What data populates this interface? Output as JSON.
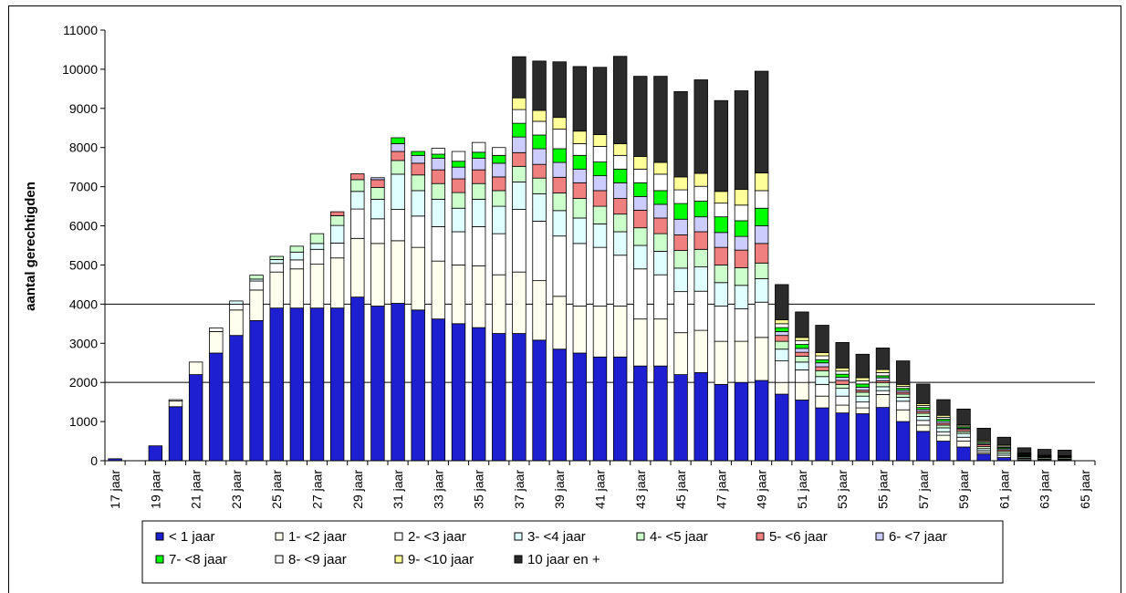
{
  "chart_data": {
    "type": "bar",
    "stacked": true,
    "title": "",
    "xlabel": "",
    "ylabel": "aantal gerechtigden",
    "ylim": [
      0,
      11000
    ],
    "yticks": [
      0,
      1000,
      2000,
      3000,
      4000,
      5000,
      6000,
      7000,
      8000,
      9000,
      10000,
      11000
    ],
    "grid": "horizontal at 2000 and 4000",
    "legend_position": "bottom",
    "categories": [
      "17 jaar",
      "18 jaar",
      "19 jaar",
      "20 jaar",
      "21 jaar",
      "22 jaar",
      "23 jaar",
      "24 jaar",
      "25 jaar",
      "26 jaar",
      "27 jaar",
      "28 jaar",
      "29 jaar",
      "30 jaar",
      "31 jaar",
      "32 jaar",
      "33 jaar",
      "34 jaar",
      "35 jaar",
      "36 jaar",
      "37 jaar",
      "38 jaar",
      "39 jaar",
      "40 jaar",
      "41 jaar",
      "42 jaar",
      "43 jaar",
      "44 jaar",
      "45 jaar",
      "46 jaar",
      "47 jaar",
      "48 jaar",
      "49 jaar",
      "50 jaar",
      "51 jaar",
      "52 jaar",
      "53 jaar",
      "54 jaar",
      "55 jaar",
      "56 jaar",
      "57 jaar",
      "58 jaar",
      "59 jaar",
      "60 jaar",
      "61 jaar",
      "62 jaar",
      "63 jaar",
      "64 jaar",
      "65 jaar"
    ],
    "x_tick_labels": [
      "17 jaar",
      "19 jaar",
      "21 jaar",
      "23 jaar",
      "25 jaar",
      "27 jaar",
      "29 jaar",
      "31 jaar",
      "33 jaar",
      "35 jaar",
      "37 jaar",
      "39 jaar",
      "41 jaar",
      "43 jaar",
      "45 jaar",
      "47 jaar",
      "49 jaar",
      "51 jaar",
      "53 jaar",
      "55 jaar",
      "57 jaar",
      "59 jaar",
      "61 jaar",
      "63 jaar",
      "65 jaar"
    ],
    "series": [
      {
        "name": "< 1 jaar",
        "color": "#1f1fd2",
        "values": [
          50,
          0,
          380,
          1380,
          2200,
          2750,
          3200,
          3580,
          3900,
          3900,
          3900,
          3900,
          4180,
          3950,
          4020,
          3850,
          3620,
          3500,
          3400,
          3250,
          3250,
          3080,
          2850,
          2750,
          2650,
          2650,
          2420,
          2420,
          2200,
          2250,
          1950,
          2000,
          2050,
          1700,
          1550,
          1350,
          1220,
          1200,
          1360,
          1000,
          750,
          500,
          350,
          170,
          80,
          20,
          10,
          10,
          0
        ]
      },
      {
        "name": "1- <2 jaar",
        "color": "#fffff0",
        "values": [
          0,
          0,
          0,
          150,
          320,
          550,
          650,
          780,
          920,
          1000,
          1120,
          1280,
          1500,
          1600,
          1600,
          1600,
          1480,
          1500,
          1580,
          1500,
          1570,
          1520,
          1350,
          1200,
          1300,
          1300,
          1200,
          1200,
          1070,
          1080,
          1100,
          1050,
          1100,
          300,
          450,
          300,
          200,
          150,
          330,
          300,
          160,
          150,
          150,
          40,
          0,
          0,
          0,
          0,
          0
        ]
      },
      {
        "name": "2- <3 jaar",
        "color": "#ffffff",
        "values": [
          0,
          0,
          0,
          30,
          0,
          90,
          150,
          230,
          220,
          230,
          380,
          380,
          750,
          630,
          800,
          800,
          880,
          850,
          1000,
          1050,
          1600,
          1520,
          1540,
          1600,
          1500,
          1300,
          1280,
          1130,
          1050,
          1000,
          900,
          830,
          900,
          550,
          320,
          300,
          230,
          150,
          100,
          220,
          120,
          90,
          100,
          50,
          60,
          30,
          20,
          10,
          0
        ]
      },
      {
        "name": "3- <4 jaar",
        "color": "#e0ffff",
        "values": [
          0,
          0,
          0,
          0,
          0,
          0,
          80,
          50,
          100,
          200,
          150,
          450,
          450,
          500,
          900,
          650,
          700,
          600,
          700,
          700,
          700,
          700,
          650,
          650,
          600,
          600,
          600,
          600,
          600,
          620,
          600,
          600,
          600,
          300,
          200,
          200,
          200,
          150,
          100,
          100,
          100,
          100,
          100,
          50,
          50,
          20,
          20,
          20,
          0
        ]
      },
      {
        "name": "4- <5 jaar",
        "color": "#ccffcc",
        "values": [
          0,
          0,
          0,
          0,
          0,
          0,
          0,
          100,
          80,
          150,
          250,
          250,
          300,
          300,
          350,
          400,
          400,
          400,
          400,
          400,
          400,
          400,
          450,
          500,
          450,
          450,
          450,
          450,
          450,
          450,
          450,
          450,
          400,
          200,
          150,
          150,
          100,
          100,
          100,
          80,
          80,
          70,
          50,
          50,
          50,
          30,
          30,
          30,
          0
        ]
      },
      {
        "name": "5- <6 jaar",
        "color": "#f08080",
        "values": [
          0,
          0,
          0,
          0,
          0,
          0,
          0,
          0,
          0,
          0,
          0,
          100,
          150,
          200,
          230,
          300,
          350,
          350,
          350,
          350,
          350,
          350,
          400,
          400,
          400,
          400,
          450,
          400,
          400,
          450,
          450,
          450,
          500,
          150,
          100,
          100,
          100,
          50,
          50,
          50,
          50,
          50,
          50,
          50,
          40,
          20,
          20,
          20,
          0
        ]
      },
      {
        "name": "6- <7 jaar",
        "color": "#ccccff",
        "values": [
          0,
          0,
          0,
          0,
          0,
          0,
          0,
          0,
          0,
          0,
          0,
          0,
          0,
          50,
          200,
          200,
          300,
          300,
          300,
          350,
          400,
          400,
          380,
          350,
          380,
          400,
          350,
          350,
          400,
          380,
          380,
          350,
          450,
          100,
          100,
          100,
          80,
          80,
          80,
          50,
          50,
          50,
          30,
          30,
          30,
          20,
          10,
          10,
          0
        ]
      },
      {
        "name": "7- <8 jaar",
        "color": "#00ff00",
        "values": [
          0,
          0,
          0,
          0,
          0,
          0,
          0,
          0,
          0,
          0,
          0,
          0,
          0,
          0,
          150,
          100,
          100,
          150,
          150,
          200,
          350,
          350,
          350,
          350,
          350,
          350,
          350,
          350,
          400,
          400,
          400,
          400,
          450,
          100,
          100,
          80,
          80,
          80,
          50,
          50,
          50,
          50,
          30,
          30,
          30,
          20,
          10,
          10,
          0
        ]
      },
      {
        "name": "8- <9 jaar",
        "color": "#ffffff",
        "values": [
          0,
          0,
          0,
          0,
          0,
          0,
          0,
          0,
          0,
          0,
          0,
          0,
          0,
          0,
          0,
          0,
          150,
          250,
          250,
          200,
          350,
          350,
          500,
          300,
          400,
          350,
          350,
          420,
          350,
          380,
          350,
          400,
          450,
          100,
          100,
          100,
          80,
          80,
          80,
          50,
          50,
          50,
          30,
          30,
          30,
          20,
          10,
          10,
          0
        ]
      },
      {
        "name": "9- <10 jaar",
        "color": "#ffff99",
        "values": [
          0,
          0,
          0,
          0,
          0,
          0,
          0,
          0,
          0,
          0,
          0,
          0,
          0,
          0,
          0,
          0,
          0,
          0,
          0,
          0,
          300,
          280,
          300,
          320,
          300,
          300,
          320,
          300,
          330,
          330,
          300,
          400,
          450,
          100,
          80,
          80,
          80,
          80,
          80,
          50,
          50,
          50,
          30,
          30,
          30,
          20,
          10,
          10,
          0
        ]
      },
      {
        "name": "10 jaar en +",
        "color": "#2b2b2b",
        "values": [
          0,
          0,
          0,
          0,
          0,
          0,
          0,
          0,
          0,
          0,
          0,
          0,
          0,
          0,
          0,
          0,
          0,
          0,
          0,
          0,
          1050,
          1260,
          1420,
          1650,
          1720,
          2230,
          2050,
          2200,
          2180,
          2390,
          2320,
          2520,
          2600,
          900,
          650,
          700,
          650,
          600,
          550,
          600,
          500,
          400,
          400,
          300,
          200,
          130,
          150,
          140,
          0
        ]
      }
    ]
  }
}
